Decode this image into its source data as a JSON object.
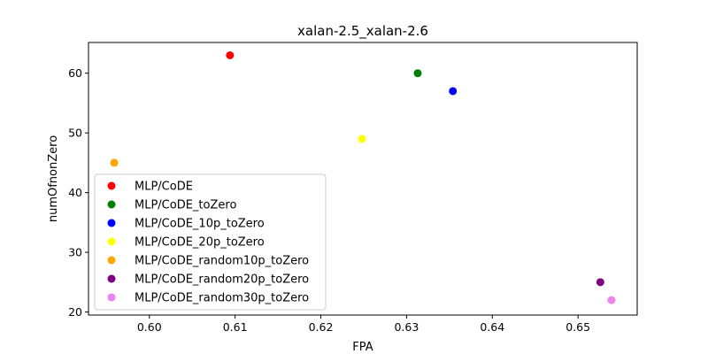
{
  "chart_data": {
    "type": "scatter",
    "title": "xalan-2.5_xalan-2.6",
    "xlabel": "FPA",
    "ylabel": "numOfnonZero",
    "xlim": [
      0.5929,
      0.6569
    ],
    "ylim": [
      19.49,
      65.15
    ],
    "xticks": [
      0.6,
      0.61,
      0.62,
      0.63,
      0.64,
      0.65
    ],
    "xtick_labels": [
      "0.60",
      "0.61",
      "0.62",
      "0.63",
      "0.64",
      "0.65"
    ],
    "yticks": [
      20,
      30,
      40,
      50,
      60
    ],
    "ytick_labels": [
      "20",
      "30",
      "40",
      "50",
      "60"
    ],
    "grid": false,
    "legend_position": "lower-left",
    "series": [
      {
        "name": "MLP/CoDE",
        "color": "#ff0000",
        "x": 0.6094,
        "y": 63
      },
      {
        "name": "MLP/CoDE_toZero",
        "color": "#008000",
        "x": 0.6313,
        "y": 60
      },
      {
        "name": "MLP/CoDE_10p_toZero",
        "color": "#0000ff",
        "x": 0.6354,
        "y": 57
      },
      {
        "name": "MLP/CoDE_20p_toZero",
        "color": "#ffff00",
        "x": 0.6248,
        "y": 49
      },
      {
        "name": "MLP/CoDE_random10p_toZero",
        "color": "#ffa500",
        "x": 0.5959,
        "y": 45
      },
      {
        "name": "MLP/CoDE_random20p_toZero",
        "color": "#800080",
        "x": 0.6526,
        "y": 25
      },
      {
        "name": "MLP/CoDE_random30p_toZero",
        "color": "#ee82ee",
        "x": 0.6539,
        "y": 22
      }
    ]
  }
}
